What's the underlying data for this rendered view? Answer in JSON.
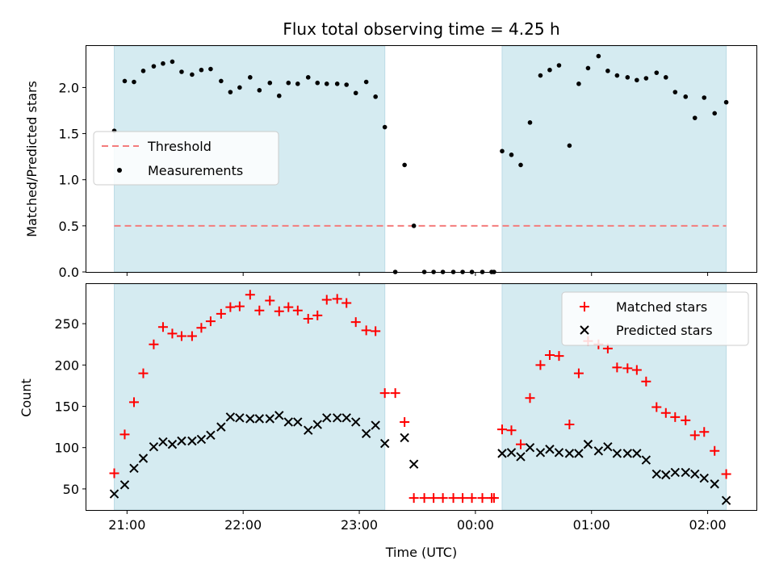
{
  "chart_data": {
    "type": "scatter",
    "title": "Flux total observing time = 4.25 h",
    "xlabel": "Time (UTC)",
    "x_unit": "hours",
    "x_ticks": [
      {
        "value": 21.0,
        "label": "21:00"
      },
      {
        "value": 22.0,
        "label": "22:00"
      },
      {
        "value": 23.0,
        "label": "23:00"
      },
      {
        "value": 24.0,
        "label": "00:00"
      },
      {
        "value": 25.0,
        "label": "01:00"
      },
      {
        "value": 26.0,
        "label": "02:00"
      }
    ],
    "xlim": [
      20.65,
      26.42
    ],
    "shaded_intervals": [
      [
        20.89,
        23.22
      ],
      [
        24.23,
        26.16
      ]
    ],
    "shade_color": "#d5ebf1",
    "panels": [
      {
        "name": "ratio",
        "ylabel": "Matched/Predicted stars",
        "ylim": [
          0,
          2.45
        ],
        "y_ticks": [
          0.0,
          0.5,
          1.0,
          1.5,
          2.0
        ],
        "y_tick_labels": [
          "0.0",
          "0.5",
          "1.0",
          "1.5",
          "2.0"
        ],
        "legend": {
          "position": "center-left",
          "entries": [
            "Threshold",
            "Measurements"
          ]
        },
        "threshold": {
          "name": "Threshold",
          "value": 0.5,
          "x_range": [
            20.89,
            26.16
          ],
          "color": "#f47c7c",
          "style": "dashed"
        },
        "series": [
          {
            "name": "Measurements",
            "marker": "dot",
            "color": "#000000",
            "points": [
              [
                20.89,
                1.53
              ],
              [
                20.98,
                2.07
              ],
              [
                21.06,
                2.06
              ],
              [
                21.14,
                2.18
              ],
              [
                21.23,
                2.23
              ],
              [
                21.31,
                2.26
              ],
              [
                21.39,
                2.28
              ],
              [
                21.47,
                2.17
              ],
              [
                21.56,
                2.14
              ],
              [
                21.64,
                2.19
              ],
              [
                21.72,
                2.2
              ],
              [
                21.81,
                2.07
              ],
              [
                21.89,
                1.95
              ],
              [
                21.97,
                2.0
              ],
              [
                22.06,
                2.11
              ],
              [
                22.14,
                1.97
              ],
              [
                22.23,
                2.05
              ],
              [
                22.31,
                1.91
              ],
              [
                22.39,
                2.05
              ],
              [
                22.47,
                2.04
              ],
              [
                22.56,
                2.11
              ],
              [
                22.64,
                2.05
              ],
              [
                22.72,
                2.04
              ],
              [
                22.81,
                2.04
              ],
              [
                22.89,
                2.03
              ],
              [
                22.97,
                1.94
              ],
              [
                23.06,
                2.06
              ],
              [
                23.14,
                1.9
              ],
              [
                23.22,
                1.57
              ],
              [
                23.31,
                0.0
              ],
              [
                23.39,
                1.16
              ],
              [
                23.47,
                0.5
              ],
              [
                23.56,
                0.0
              ],
              [
                23.64,
                0.0
              ],
              [
                23.72,
                0.0
              ],
              [
                23.81,
                0.0
              ],
              [
                23.89,
                0.0
              ],
              [
                23.97,
                0.0
              ],
              [
                24.06,
                0.0
              ],
              [
                24.14,
                0.0
              ],
              [
                24.16,
                0.0
              ],
              [
                24.23,
                1.31
              ],
              [
                24.31,
                1.27
              ],
              [
                24.39,
                1.16
              ],
              [
                24.47,
                1.62
              ],
              [
                24.56,
                2.13
              ],
              [
                24.64,
                2.19
              ],
              [
                24.72,
                2.24
              ],
              [
                24.81,
                1.37
              ],
              [
                24.89,
                2.04
              ],
              [
                24.97,
                2.21
              ],
              [
                25.06,
                2.34
              ],
              [
                25.14,
                2.18
              ],
              [
                25.22,
                2.13
              ],
              [
                25.31,
                2.11
              ],
              [
                25.39,
                2.08
              ],
              [
                25.47,
                2.1
              ],
              [
                25.56,
                2.16
              ],
              [
                25.64,
                2.11
              ],
              [
                25.72,
                1.95
              ],
              [
                25.81,
                1.9
              ],
              [
                25.89,
                1.67
              ],
              [
                25.97,
                1.89
              ],
              [
                26.06,
                1.72
              ],
              [
                26.16,
                1.84
              ]
            ]
          }
        ]
      },
      {
        "name": "count",
        "ylabel": "Count",
        "ylim": [
          24.5,
          298
        ],
        "y_ticks": [
          50,
          100,
          150,
          200,
          250
        ],
        "y_tick_labels": [
          "50",
          "100",
          "150",
          "200",
          "250"
        ],
        "legend": {
          "position": "top-right",
          "entries": [
            "Matched stars",
            "Predicted stars"
          ]
        },
        "series": [
          {
            "name": "Matched stars",
            "marker": "plus",
            "color": "#ff0000",
            "points": [
              [
                20.89,
                69
              ],
              [
                20.98,
                116
              ],
              [
                21.06,
                155
              ],
              [
                21.14,
                190
              ],
              [
                21.23,
                225
              ],
              [
                21.31,
                246
              ],
              [
                21.39,
                238
              ],
              [
                21.47,
                235
              ],
              [
                21.56,
                235
              ],
              [
                21.64,
                245
              ],
              [
                21.72,
                253
              ],
              [
                21.81,
                262
              ],
              [
                21.89,
                270
              ],
              [
                21.97,
                271
              ],
              [
                22.06,
                285
              ],
              [
                22.14,
                266
              ],
              [
                22.23,
                278
              ],
              [
                22.31,
                265
              ],
              [
                22.39,
                270
              ],
              [
                22.47,
                266
              ],
              [
                22.56,
                256
              ],
              [
                22.64,
                260
              ],
              [
                22.72,
                279
              ],
              [
                22.81,
                280
              ],
              [
                22.89,
                275
              ],
              [
                22.97,
                252
              ],
              [
                23.06,
                242
              ],
              [
                23.14,
                241
              ],
              [
                23.22,
                166
              ],
              [
                23.31,
                166
              ],
              [
                23.39,
                131
              ],
              [
                23.47,
                39
              ],
              [
                23.56,
                39
              ],
              [
                23.64,
                39
              ],
              [
                23.72,
                39
              ],
              [
                23.81,
                39
              ],
              [
                23.89,
                39
              ],
              [
                23.97,
                39
              ],
              [
                24.06,
                39
              ],
              [
                24.14,
                39
              ],
              [
                24.16,
                39
              ],
              [
                24.23,
                122
              ],
              [
                24.31,
                121
              ],
              [
                24.39,
                104
              ],
              [
                24.47,
                160
              ],
              [
                24.56,
                200
              ],
              [
                24.64,
                212
              ],
              [
                24.72,
                211
              ],
              [
                24.81,
                128
              ],
              [
                24.89,
                190
              ],
              [
                24.97,
                229
              ],
              [
                25.06,
                225
              ],
              [
                25.14,
                220
              ],
              [
                25.22,
                197
              ],
              [
                25.31,
                196
              ],
              [
                25.39,
                194
              ],
              [
                25.47,
                180
              ],
              [
                25.56,
                149
              ],
              [
                25.64,
                142
              ],
              [
                25.72,
                137
              ],
              [
                25.81,
                133
              ],
              [
                25.89,
                115
              ],
              [
                25.97,
                119
              ],
              [
                26.06,
                96
              ],
              [
                26.16,
                68
              ]
            ]
          },
          {
            "name": "Predicted stars",
            "marker": "x",
            "color": "#000000",
            "points": [
              [
                20.89,
                44
              ],
              [
                20.98,
                55
              ],
              [
                21.06,
                75
              ],
              [
                21.14,
                87
              ],
              [
                21.23,
                101
              ],
              [
                21.31,
                107
              ],
              [
                21.39,
                104
              ],
              [
                21.47,
                108
              ],
              [
                21.56,
                108
              ],
              [
                21.64,
                110
              ],
              [
                21.72,
                115
              ],
              [
                21.81,
                125
              ],
              [
                21.89,
                137
              ],
              [
                21.97,
                136
              ],
              [
                22.06,
                135
              ],
              [
                22.14,
                135
              ],
              [
                22.23,
                135
              ],
              [
                22.31,
                139
              ],
              [
                22.39,
                131
              ],
              [
                22.47,
                131
              ],
              [
                22.56,
                121
              ],
              [
                22.64,
                128
              ],
              [
                22.72,
                136
              ],
              [
                22.81,
                136
              ],
              [
                22.89,
                136
              ],
              [
                22.97,
                131
              ],
              [
                23.06,
                117
              ],
              [
                23.14,
                127
              ],
              [
                23.22,
                105
              ],
              [
                23.39,
                112
              ],
              [
                23.47,
                80
              ],
              [
                24.23,
                93
              ],
              [
                24.31,
                94
              ],
              [
                24.39,
                89
              ],
              [
                24.47,
                100
              ],
              [
                24.56,
                94
              ],
              [
                24.64,
                98
              ],
              [
                24.72,
                94
              ],
              [
                24.81,
                93
              ],
              [
                24.89,
                93
              ],
              [
                24.97,
                104
              ],
              [
                25.06,
                96
              ],
              [
                25.14,
                101
              ],
              [
                25.22,
                93
              ],
              [
                25.31,
                93
              ],
              [
                25.39,
                93
              ],
              [
                25.47,
                85
              ],
              [
                25.56,
                68
              ],
              [
                25.64,
                67
              ],
              [
                25.72,
                70
              ],
              [
                25.81,
                70
              ],
              [
                25.89,
                68
              ],
              [
                25.97,
                63
              ],
              [
                26.06,
                56
              ],
              [
                26.16,
                36
              ]
            ]
          }
        ]
      }
    ]
  }
}
